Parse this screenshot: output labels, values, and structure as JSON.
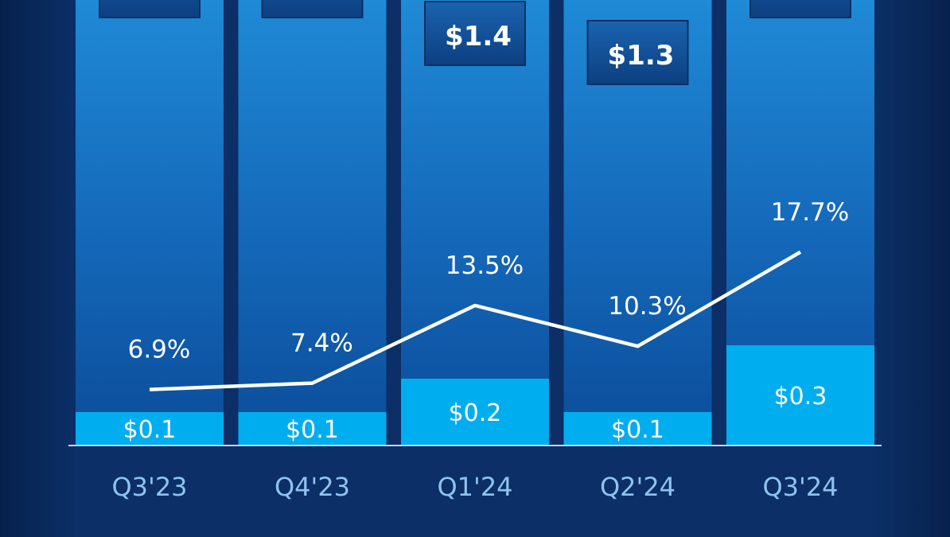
{
  "chart_data": {
    "type": "bar",
    "categories": [
      "Q3'23",
      "Q4'23",
      "Q1'24",
      "Q2'24",
      "Q3'24"
    ],
    "total_labels": [
      null,
      null,
      "$1.4",
      "$1.3",
      null
    ],
    "totals": [
      null,
      null,
      1.4,
      1.3,
      null
    ],
    "segment_values": [
      0.1,
      0.1,
      0.2,
      0.1,
      0.3
    ],
    "segment_labels": [
      "$0.1",
      "$0.1",
      "$0.2",
      "$0.1",
      "$0.3"
    ],
    "line_values": [
      6.9,
      7.4,
      13.5,
      10.3,
      17.7
    ],
    "line_labels": [
      "6.9%",
      "7.4%",
      "13.5%",
      "10.3%",
      "17.7%"
    ],
    "colors": {
      "background": "#0b2f66",
      "bar_top": "#1f8ad6",
      "bar_bottom": "#0b4c99",
      "segment": "#00aeef",
      "line": "#ffffff",
      "tick": "#8fc3ee",
      "label_box": "#0d4a8f"
    }
  }
}
